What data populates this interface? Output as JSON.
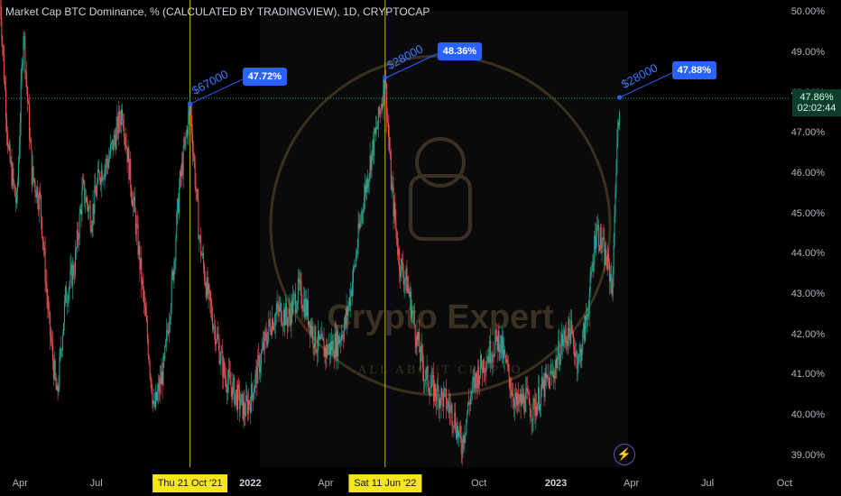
{
  "title": "Market Cap BTC Dominance, % (CALCULATED BY TRADINGVIEW), 1D, CRYPTOCAP",
  "last_price_tag": {
    "value": "47.86%",
    "countdown": "02:02:44"
  },
  "watermark": {
    "brand": "Crypto Expert",
    "tagline": "ALL ABOUT CRYPTO"
  },
  "x_markers": [
    {
      "label": "Thu 21 Oct '21",
      "date": "2021-10-21"
    },
    {
      "label": "Sat 11 Jun '22",
      "date": "2022-06-11"
    }
  ],
  "annotations": [
    {
      "text": "$67000",
      "value": "47.72%",
      "date": "2021-10-21",
      "y": 47.72
    },
    {
      "text": "$28000",
      "value": "48.36%",
      "date": "2022-06-11",
      "y": 48.36
    },
    {
      "text": "$28000",
      "value": "47.88%",
      "date": "2023-03-18",
      "y": 47.88
    }
  ],
  "colors": {
    "up": "#26a69a",
    "down": "#ef5350",
    "marker": "#f5e61c",
    "callout": "#2962ff",
    "price": "#26a69a"
  },
  "icons": {
    "flash": "lightning-icon"
  },
  "chart_data": {
    "type": "candlestick",
    "title": "Market Cap BTC Dominance, % (CALCULATED BY TRADINGVIEW), 1D, CRYPTOCAP",
    "x_ticks": [
      {
        "label": "Apr",
        "date": "2021-04-01"
      },
      {
        "label": "Jul",
        "date": "2021-07-01"
      },
      {
        "label": "2022",
        "date": "2022-01-01",
        "bold": true
      },
      {
        "label": "Apr",
        "date": "2022-04-01"
      },
      {
        "label": "Oct",
        "date": "2022-10-01"
      },
      {
        "label": "2023",
        "date": "2023-01-01",
        "bold": true
      },
      {
        "label": "Apr",
        "date": "2023-04-01"
      },
      {
        "label": "Jul",
        "date": "2023-07-01"
      },
      {
        "label": "Oct",
        "date": "2023-10-01"
      }
    ],
    "y_ticks": [
      "39.00%",
      "40.00%",
      "41.00%",
      "42.00%",
      "43.00%",
      "44.00%",
      "45.00%",
      "46.00%",
      "47.00%",
      "48.00%",
      "49.00%",
      "50.00%"
    ],
    "ylim": [
      38.7,
      50.3
    ],
    "xlim": [
      "2021-03-08",
      "2023-10-06"
    ],
    "close_series": [
      [
        "2021-03-08",
        50.4
      ],
      [
        "2021-03-18",
        46.5
      ],
      [
        "2021-03-28",
        45.2
      ],
      [
        "2021-04-05",
        49.6
      ],
      [
        "2021-04-15",
        46.0
      ],
      [
        "2021-04-25",
        45.3
      ],
      [
        "2021-05-05",
        42.4
      ],
      [
        "2021-05-15",
        40.4
      ],
      [
        "2021-05-25",
        42.9
      ],
      [
        "2021-06-05",
        43.7
      ],
      [
        "2021-06-15",
        45.6
      ],
      [
        "2021-06-25",
        44.9
      ],
      [
        "2021-07-05",
        46.0
      ],
      [
        "2021-07-15",
        46.3
      ],
      [
        "2021-07-25",
        47.0
      ],
      [
        "2021-08-01",
        47.6
      ],
      [
        "2021-08-10",
        46.0
      ],
      [
        "2021-08-20",
        44.2
      ],
      [
        "2021-09-01",
        41.7
      ],
      [
        "2021-09-08",
        40.1
      ],
      [
        "2021-09-20",
        41.2
      ],
      [
        "2021-10-01",
        43.6
      ],
      [
        "2021-10-08",
        45.6
      ],
      [
        "2021-10-15",
        46.7
      ],
      [
        "2021-10-21",
        47.7
      ],
      [
        "2021-11-01",
        44.4
      ],
      [
        "2021-11-10",
        43.1
      ],
      [
        "2021-11-20",
        42.1
      ],
      [
        "2021-12-01",
        41.0
      ],
      [
        "2021-12-12",
        40.6
      ],
      [
        "2021-12-25",
        40.1
      ],
      [
        "2022-01-01",
        40.4
      ],
      [
        "2022-01-12",
        41.3
      ],
      [
        "2022-01-25",
        42.3
      ],
      [
        "2022-02-05",
        42.6
      ],
      [
        "2022-02-15",
        42.4
      ],
      [
        "2022-02-28",
        43.1
      ],
      [
        "2022-03-08",
        42.7
      ],
      [
        "2022-03-20",
        41.8
      ],
      [
        "2022-04-01",
        41.6
      ],
      [
        "2022-04-15",
        41.8
      ],
      [
        "2022-04-25",
        42.3
      ],
      [
        "2022-05-05",
        43.6
      ],
      [
        "2022-05-15",
        45.2
      ],
      [
        "2022-05-25",
        46.4
      ],
      [
        "2022-06-03",
        47.3
      ],
      [
        "2022-06-11",
        48.4
      ],
      [
        "2022-06-18",
        45.8
      ],
      [
        "2022-06-28",
        43.8
      ],
      [
        "2022-07-08",
        43.2
      ],
      [
        "2022-07-18",
        42.0
      ],
      [
        "2022-07-28",
        41.0
      ],
      [
        "2022-08-08",
        40.6
      ],
      [
        "2022-08-20",
        40.4
      ],
      [
        "2022-09-01",
        40.0
      ],
      [
        "2022-09-10",
        39.2
      ],
      [
        "2022-09-20",
        40.4
      ],
      [
        "2022-10-01",
        41.1
      ],
      [
        "2022-10-12",
        41.5
      ],
      [
        "2022-10-25",
        41.9
      ],
      [
        "2022-11-05",
        41.0
      ],
      [
        "2022-11-15",
        40.2
      ],
      [
        "2022-11-25",
        40.4
      ],
      [
        "2022-12-05",
        40.1
      ],
      [
        "2022-12-15",
        40.6
      ],
      [
        "2022-12-28",
        41.0
      ],
      [
        "2023-01-08",
        41.8
      ],
      [
        "2023-01-18",
        42.1
      ],
      [
        "2023-01-28",
        41.3
      ],
      [
        "2023-02-05",
        42.2
      ],
      [
        "2023-02-12",
        43.3
      ],
      [
        "2023-02-18",
        44.7
      ],
      [
        "2023-02-25",
        44.2
      ],
      [
        "2023-03-05",
        43.6
      ],
      [
        "2023-03-10",
        43.2
      ],
      [
        "2023-03-12",
        45.2
      ],
      [
        "2023-03-15",
        46.6
      ],
      [
        "2023-03-18",
        47.86
      ]
    ]
  }
}
